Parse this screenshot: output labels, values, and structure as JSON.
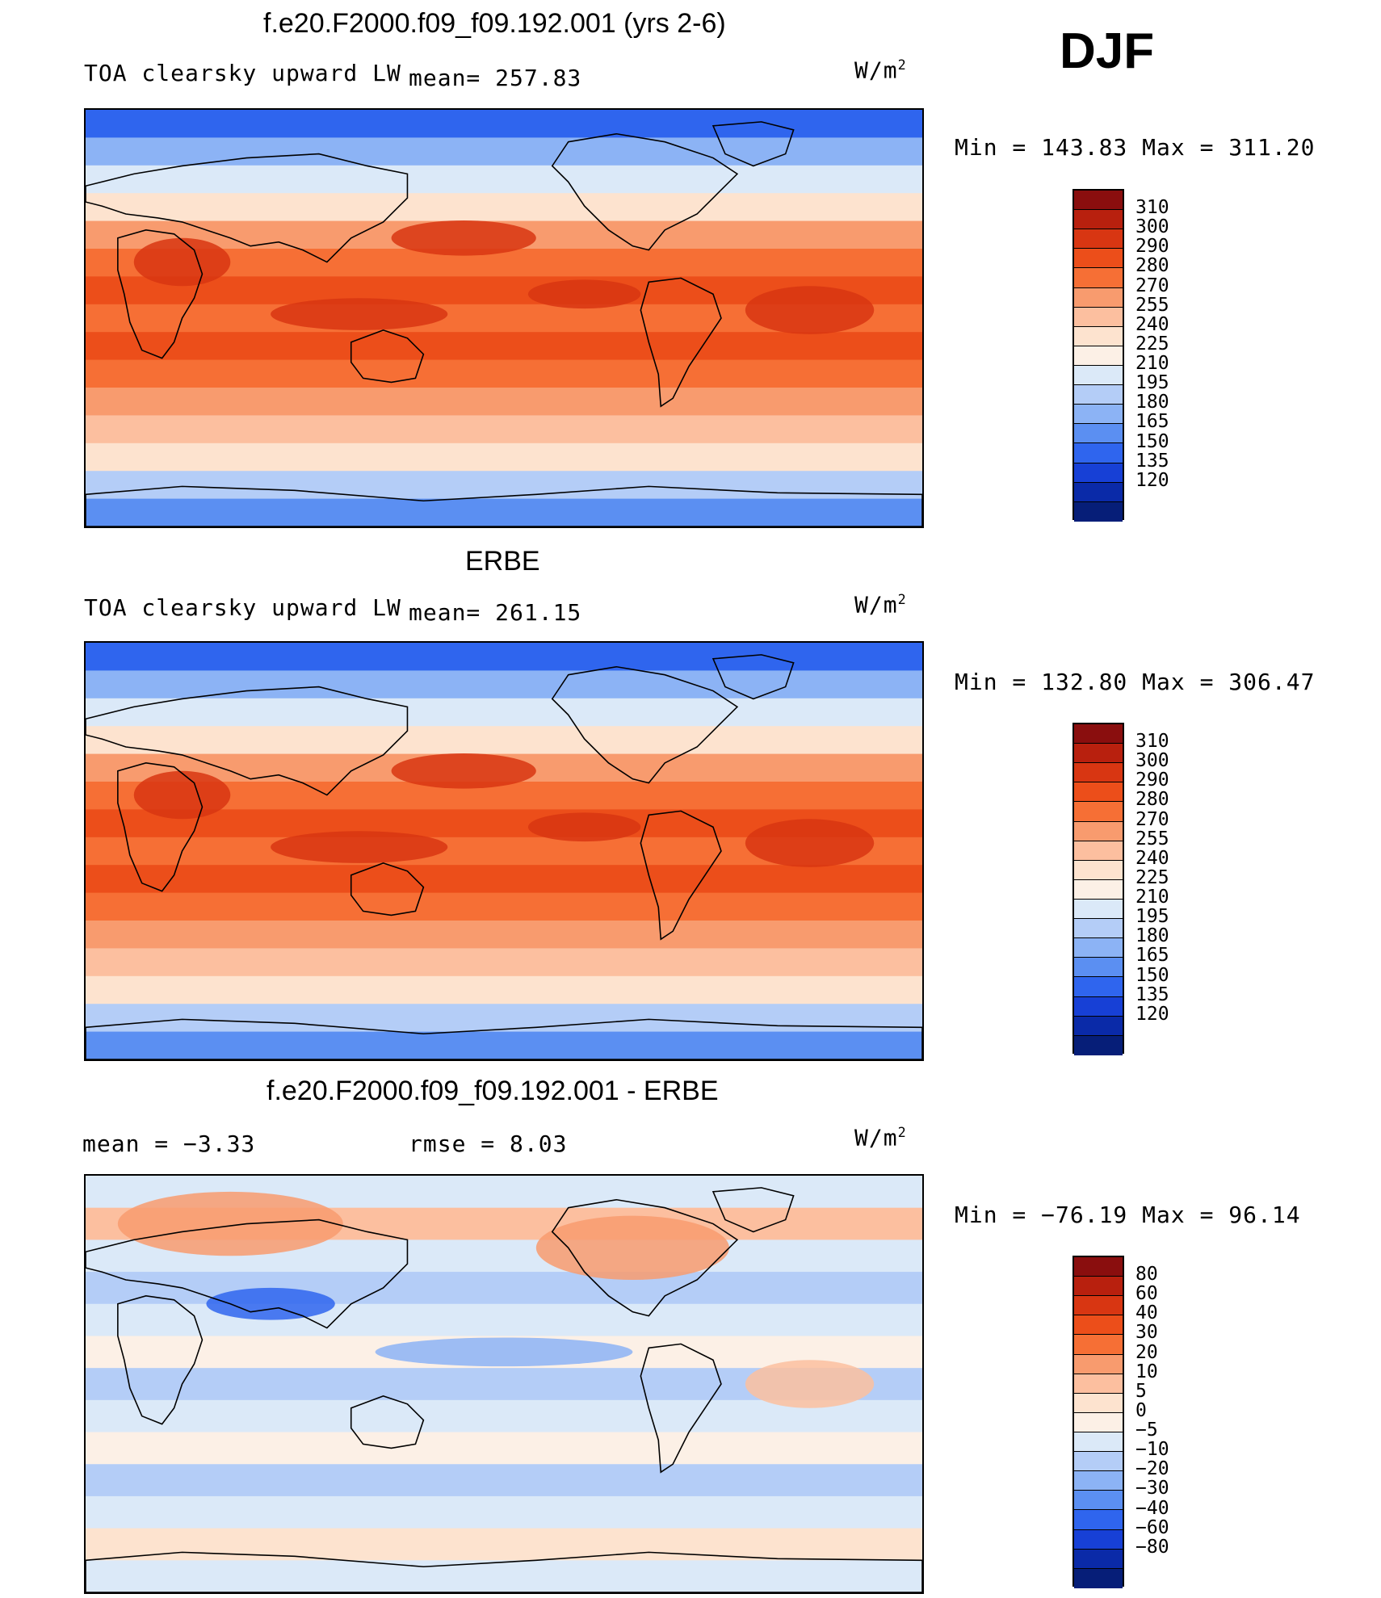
{
  "season": "DJF",
  "units_base": "W/m",
  "units_exp": "2",
  "panels": [
    {
      "title": "f.e20.F2000.f09_f09.192.001 (yrs 2-6)",
      "left_label": "TOA clearsky upward LW",
      "middle_label": "mean= 257.83",
      "minmax": "Min  =  143.83 Max  =  311.20",
      "kind": "model"
    },
    {
      "title": "ERBE",
      "left_label": "TOA clearsky upward LW",
      "middle_label": "mean= 261.15",
      "minmax": "Min  =  132.80 Max  =  306.47",
      "kind": "obs"
    },
    {
      "title": "f.e20.F2000.f09_f09.192.001 - ERBE",
      "left_label": "mean  =    −3.33",
      "middle_label": "rmse  =     8.03",
      "minmax": "Min  = −76.19 Max  =   96.14",
      "kind": "diff"
    }
  ],
  "colorbars": {
    "abs": {
      "labels": [
        "310",
        "300",
        "290",
        "280",
        "270",
        "255",
        "240",
        "225",
        "210",
        "195",
        "180",
        "165",
        "150",
        "135",
        "120"
      ],
      "colors": [
        "#8a0e0e",
        "#b8200e",
        "#d83612",
        "#ec4e1a",
        "#f66f35",
        "#f89b6e",
        "#fcbf9f",
        "#fde3cf",
        "#fcf0e6",
        "#dbe9f8",
        "#b4cdf7",
        "#8cb3f5",
        "#5b8ff2",
        "#2f65ee",
        "#1740d6",
        "#0a2aa8",
        "#061e78"
      ]
    },
    "diff": {
      "labels": [
        "80",
        "60",
        "40",
        "30",
        "20",
        "10",
        "5",
        "0",
        "−5",
        "−10",
        "−20",
        "−30",
        "−40",
        "−60",
        "−80"
      ],
      "colors": [
        "#8a0e0e",
        "#b8200e",
        "#d83612",
        "#ec4e1a",
        "#f66f35",
        "#f89b6e",
        "#fcbf9f",
        "#fde3cf",
        "#fcf0e6",
        "#dbe9f8",
        "#b4cdf7",
        "#8cb3f5",
        "#5b8ff2",
        "#2f65ee",
        "#1740d6",
        "#0a2aa8",
        "#061e78"
      ]
    }
  }
}
